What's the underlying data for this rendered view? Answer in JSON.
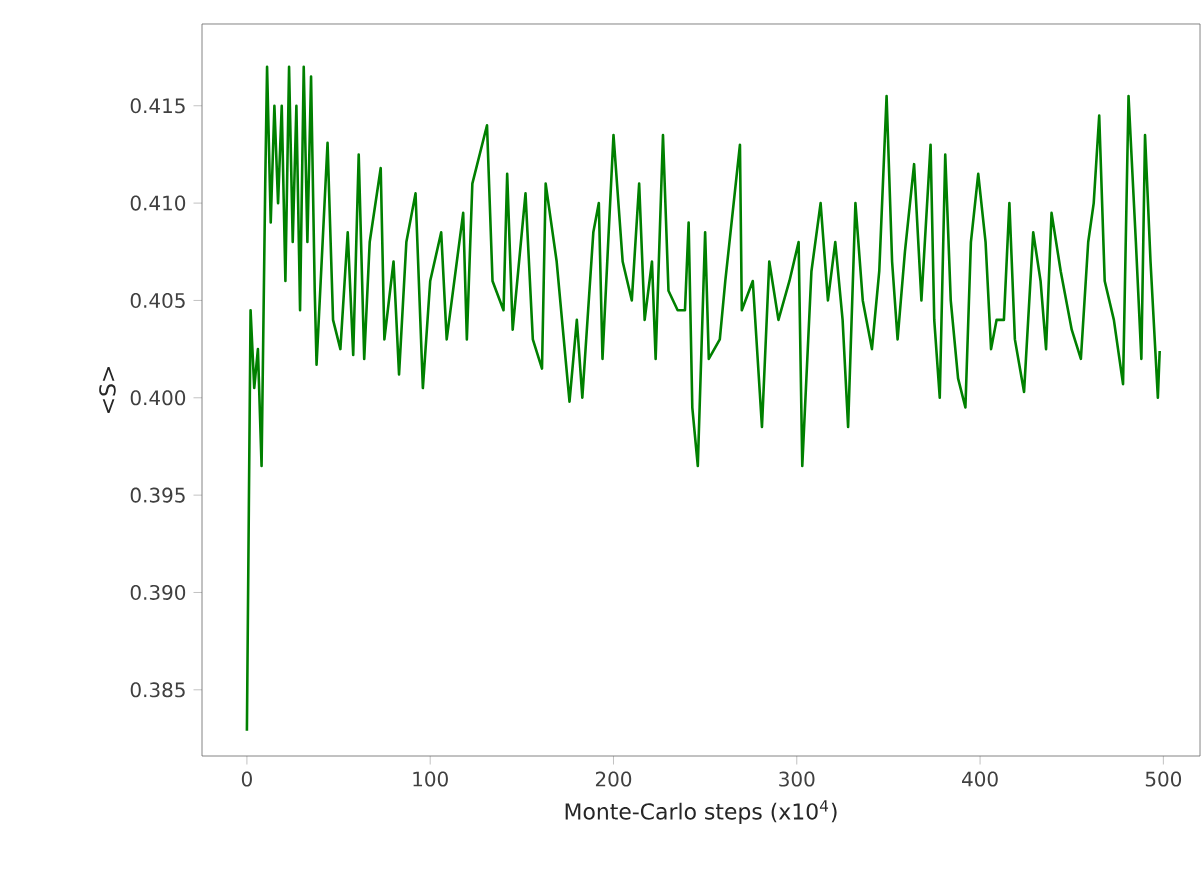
{
  "chart_data": {
    "type": "line",
    "xlabel": "Monte-Carlo steps (x10$^{4}$)",
    "ylabel": "<S>",
    "xlim": [
      -24.5,
      520
    ],
    "ylim": [
      0.3816,
      0.4192
    ],
    "xticks": [
      0,
      100,
      200,
      300,
      400,
      500
    ],
    "yticks": [
      {
        "value": 0.385,
        "label": "0.385"
      },
      {
        "value": 0.39,
        "label": "0.390"
      },
      {
        "value": 0.395,
        "label": "0.395"
      },
      {
        "value": 0.4,
        "label": "0.400"
      },
      {
        "value": 0.405,
        "label": "0.405"
      },
      {
        "value": 0.41,
        "label": "0.410"
      },
      {
        "value": 0.415,
        "label": "0.415"
      }
    ],
    "marker": "none",
    "line_style": "solid",
    "series": [
      {
        "color": "#008000",
        "x": [
          0,
          2,
          4,
          6,
          8,
          10,
          11,
          13,
          15,
          17,
          19,
          21,
          23,
          25,
          27,
          29,
          31,
          33,
          35,
          37,
          38,
          44,
          47,
          51,
          55,
          58,
          61,
          64,
          67,
          73,
          75,
          80,
          83,
          87,
          92,
          96,
          100,
          106,
          109,
          118,
          120,
          123,
          131,
          134,
          140,
          142,
          145,
          152,
          156,
          161,
          163,
          169,
          176,
          180,
          183,
          189,
          192,
          194,
          200,
          205,
          210,
          214,
          217,
          221,
          223,
          227,
          230,
          235,
          239,
          241,
          243,
          246,
          250,
          252,
          258,
          261,
          269,
          270,
          276,
          281,
          285,
          290,
          296,
          301,
          303,
          308,
          313,
          317,
          321,
          325,
          328,
          332,
          336,
          341,
          345,
          349,
          352,
          355,
          359,
          364,
          368,
          373,
          375,
          378,
          381,
          384,
          388,
          392,
          395,
          399,
          403,
          406,
          409,
          413,
          416,
          419,
          424,
          429,
          433,
          436,
          439,
          444,
          450,
          455,
          459,
          462,
          465,
          468,
          473,
          478,
          481,
          485,
          488,
          490,
          493,
          497,
          498
        ],
        "values": [
          0.3829,
          0.4045,
          0.4005,
          0.4025,
          0.3965,
          0.411,
          0.417,
          0.409,
          0.415,
          0.41,
          0.415,
          0.406,
          0.417,
          0.408,
          0.415,
          0.4045,
          0.417,
          0.408,
          0.4165,
          0.4055,
          0.4017,
          0.4131,
          0.404,
          0.4025,
          0.4085,
          0.4022,
          0.4125,
          0.402,
          0.408,
          0.4118,
          0.403,
          0.407,
          0.4012,
          0.408,
          0.4105,
          0.4005,
          0.406,
          0.4085,
          0.403,
          0.4095,
          0.403,
          0.411,
          0.414,
          0.406,
          0.4045,
          0.4115,
          0.4035,
          0.4105,
          0.403,
          0.4015,
          0.411,
          0.407,
          0.3998,
          0.404,
          0.4,
          0.4085,
          0.41,
          0.402,
          0.4135,
          0.407,
          0.405,
          0.411,
          0.404,
          0.407,
          0.402,
          0.4135,
          0.4055,
          0.4045,
          0.4045,
          0.409,
          0.3995,
          0.3965,
          0.4085,
          0.402,
          0.403,
          0.406,
          0.413,
          0.4045,
          0.406,
          0.3985,
          0.407,
          0.404,
          0.406,
          0.408,
          0.3965,
          0.4065,
          0.41,
          0.405,
          0.408,
          0.404,
          0.3985,
          0.41,
          0.405,
          0.4025,
          0.4065,
          0.4155,
          0.407,
          0.403,
          0.4075,
          0.412,
          0.405,
          0.413,
          0.404,
          0.4,
          0.4125,
          0.405,
          0.401,
          0.3995,
          0.408,
          0.4115,
          0.408,
          0.4025,
          0.404,
          0.404,
          0.41,
          0.403,
          0.4003,
          0.4085,
          0.406,
          0.4025,
          0.4095,
          0.4065,
          0.4035,
          0.402,
          0.408,
          0.41,
          0.4145,
          0.406,
          0.404,
          0.4007,
          0.4155,
          0.408,
          0.402,
          0.4135,
          0.407,
          0.4,
          0.4024
        ]
      }
    ]
  }
}
